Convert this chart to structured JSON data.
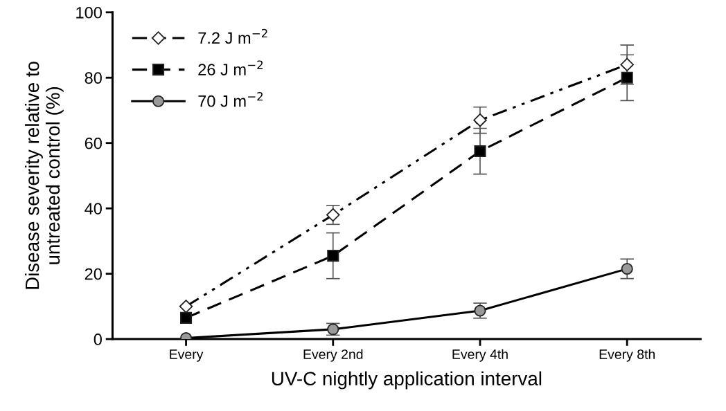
{
  "chart_data": {
    "type": "line",
    "xlabel": "UV-C nightly application interval",
    "ylabel": "Disease severity relative to\nuntreated control (%)",
    "categories": [
      "Every",
      "Every 2nd",
      "Every 4th",
      "Every 8th"
    ],
    "series": [
      {
        "name": "7.2 J m$^{−2}$",
        "color": "#ffffff",
        "marker": "diamond",
        "line_style": "dotted",
        "values": [
          10,
          38,
          67,
          84
        ],
        "errors": [
          null,
          2.9,
          4,
          6
        ]
      },
      {
        "name": "26 J m$^{−2}$",
        "color": "#000000",
        "marker": "square",
        "line_style": "dashed",
        "values": [
          6.5,
          25.5,
          57.5,
          80
        ],
        "errors": [
          null,
          7,
          7,
          7
        ]
      },
      {
        "name": "70 J m$^{−2}$",
        "color": "#999999",
        "marker": "circle",
        "line_style": "solid",
        "values": [
          0.3,
          3,
          8.7,
          21.5
        ],
        "errors": [
          null,
          1.8,
          2.3,
          3
        ]
      }
    ],
    "ylim": [
      0,
      100
    ],
    "yticks": [
      0,
      20,
      40,
      60,
      80,
      100
    ],
    "grid": false,
    "legend": "top left"
  }
}
